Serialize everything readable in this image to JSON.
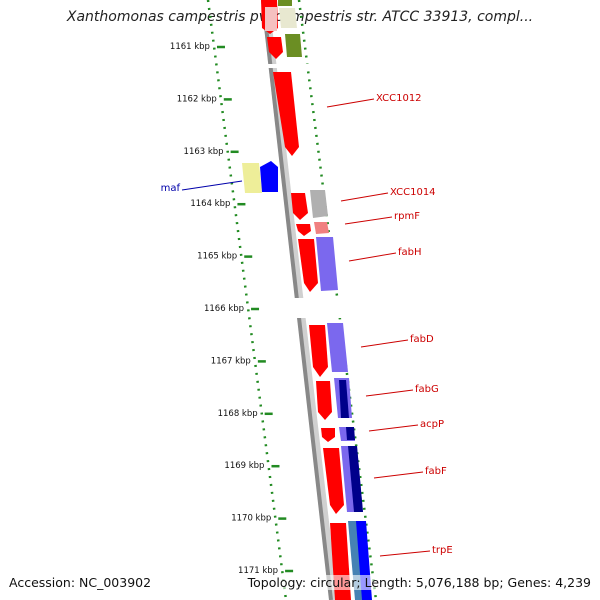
{
  "title": "Xanthomonas campestris pv. campestris str. ATCC 33913, compl...",
  "footer": {
    "accession": "Accession: NC_003902",
    "summary": "Topology: circular; Length: 5,076,188 bp; Genes: 4,239"
  },
  "scale": {
    "ticks": [
      {
        "label": "1161 kbp"
      },
      {
        "label": "1162 kbp"
      },
      {
        "label": "1163 kbp"
      },
      {
        "label": "1164 kbp"
      },
      {
        "label": "1165 kbp"
      },
      {
        "label": "1166 kbp"
      },
      {
        "label": "1167 kbp"
      },
      {
        "label": "1168 kbp"
      },
      {
        "label": "1169 kbp"
      },
      {
        "label": "1170 kbp"
      },
      {
        "label": "1171 kbp"
      }
    ]
  },
  "genes": {
    "right": [
      {
        "label": "XCC1012"
      },
      {
        "label": "XCC1014"
      },
      {
        "label": "rpmF"
      },
      {
        "label": "fabH"
      },
      {
        "label": "fabD"
      },
      {
        "label": "fabG"
      },
      {
        "label": "acpP"
      },
      {
        "label": "fabF"
      },
      {
        "label": "trpE"
      }
    ],
    "left": [
      {
        "label": "maf"
      }
    ]
  },
  "colors": {
    "gene_label_right": "#cc0000",
    "gene_label_left": "#0000aa",
    "forward_strand": "#ff0000",
    "axis_gray": "#888888",
    "dotted_ring": "#228b22",
    "cog_purple": "#7b68ee",
    "cog_navy": "#00008b",
    "cog_olive": "#6b8e23",
    "cog_yellow": "#eeee99",
    "cog_gray": "#b0b0b0",
    "cog_pink": "#f08080",
    "cog_teal": "#4682b4"
  }
}
